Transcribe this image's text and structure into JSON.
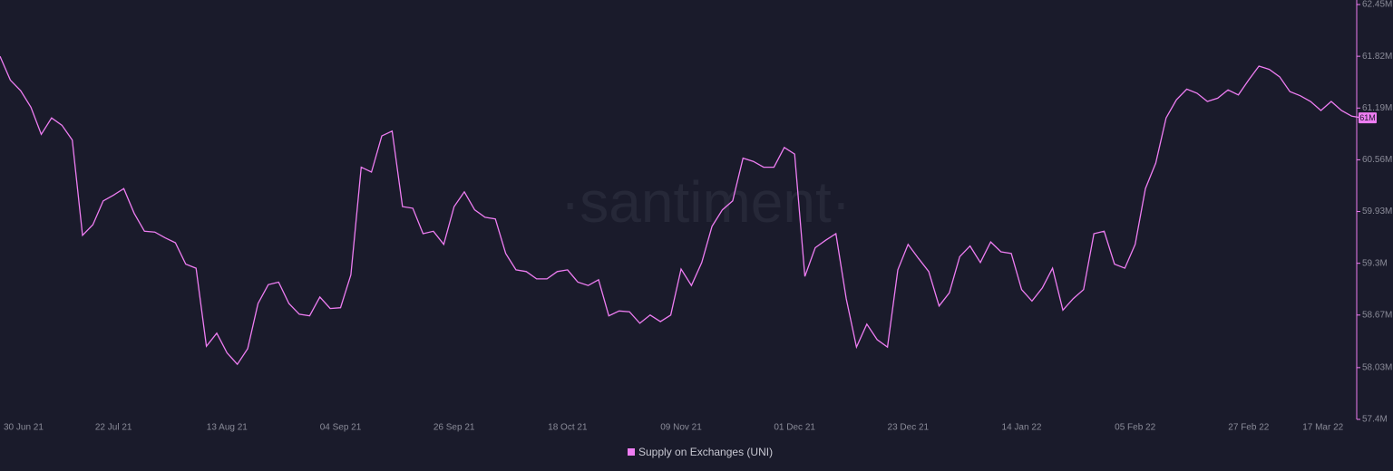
{
  "chart_data": {
    "type": "line",
    "watermark": "·santiment·",
    "categories": [
      "30 Jun 21",
      null,
      null,
      null,
      null,
      null,
      null,
      null,
      null,
      null,
      null,
      "22 Jul 21",
      null,
      null,
      null,
      null,
      null,
      null,
      null,
      null,
      null,
      null,
      "13 Aug 21",
      null,
      null,
      null,
      null,
      null,
      null,
      null,
      null,
      null,
      null,
      "04 Sep 21",
      null,
      null,
      null,
      null,
      null,
      null,
      null,
      null,
      null,
      null,
      "26 Sep 21",
      null,
      null,
      null,
      null,
      null,
      null,
      null,
      null,
      null,
      null,
      "18 Oct 21",
      null,
      null,
      null,
      null,
      null,
      null,
      null,
      null,
      null,
      null,
      "09 Nov 21",
      null,
      null,
      null,
      null,
      null,
      null,
      null,
      null,
      null,
      null,
      "01 Dec 21",
      null,
      null,
      null,
      null,
      null,
      null,
      null,
      null,
      null,
      null,
      "23 Dec 21",
      null,
      null,
      null,
      null,
      null,
      null,
      null,
      null,
      null,
      null,
      "14 Jan 22",
      null,
      null,
      null,
      null,
      null,
      null,
      null,
      null,
      null,
      null,
      "05 Feb 22",
      null,
      null,
      null,
      null,
      null,
      null,
      null,
      null,
      null,
      null,
      "27 Feb 22",
      null,
      null,
      null,
      null,
      null,
      null,
      null,
      null,
      "17 Mar 22",
      null,
      null
    ],
    "series": [
      {
        "name": "Supply on Exchanges (UNI)",
        "color": "#ee7df2",
        "values": [
          61.82,
          61.53,
          61.4,
          61.2,
          60.87,
          61.07,
          60.98,
          60.8,
          59.64,
          59.77,
          60.06,
          60.13,
          60.21,
          59.91,
          59.69,
          59.68,
          59.61,
          59.55,
          59.29,
          59.24,
          58.29,
          58.45,
          58.21,
          58.07,
          58.26,
          58.81,
          59.04,
          59.07,
          58.81,
          58.68,
          58.66,
          58.89,
          58.75,
          58.76,
          59.16,
          60.47,
          60.41,
          60.85,
          60.91,
          59.99,
          59.97,
          59.66,
          59.69,
          59.53,
          59.99,
          60.17,
          59.95,
          59.86,
          59.84,
          59.42,
          59.22,
          59.2,
          59.11,
          59.11,
          59.2,
          59.22,
          59.07,
          59.03,
          59.1,
          58.66,
          58.72,
          58.71,
          58.57,
          58.67,
          58.59,
          58.67,
          59.23,
          59.03,
          59.31,
          59.75,
          59.95,
          60.06,
          60.58,
          60.54,
          60.47,
          60.47,
          60.71,
          60.63,
          59.14,
          59.49,
          59.58,
          59.66,
          58.87,
          58.28,
          58.56,
          58.37,
          58.28,
          59.22,
          59.53,
          59.36,
          59.2,
          58.78,
          58.94,
          59.38,
          59.51,
          59.31,
          59.56,
          59.44,
          59.42,
          58.98,
          58.84,
          59.0,
          59.24,
          58.73,
          58.87,
          58.98,
          59.66,
          59.69,
          59.29,
          59.24,
          59.53,
          60.21,
          60.52,
          61.07,
          61.29,
          61.42,
          61.37,
          61.27,
          61.31,
          61.41,
          61.35,
          61.53,
          61.7,
          61.66,
          61.57,
          61.39,
          61.34,
          61.27,
          61.16,
          61.27,
          61.16,
          61.09,
          61.07
        ]
      }
    ],
    "last_value_label": "61M",
    "ylim": [
      57.4,
      62.45
    ],
    "yticks": [
      {
        "value": 62.45,
        "label": "62.45M"
      },
      {
        "value": 61.82,
        "label": "61.82M"
      },
      {
        "value": 61.19,
        "label": "61.19M"
      },
      {
        "value": 60.56,
        "label": "60.56M"
      },
      {
        "value": 59.93,
        "label": "59.93M"
      },
      {
        "value": 59.3,
        "label": "59.3M"
      },
      {
        "value": 58.67,
        "label": "58.67M"
      },
      {
        "value": 58.03,
        "label": "58.03M"
      },
      {
        "value": 57.4,
        "label": "57.4M"
      }
    ],
    "legend": "bottom"
  }
}
